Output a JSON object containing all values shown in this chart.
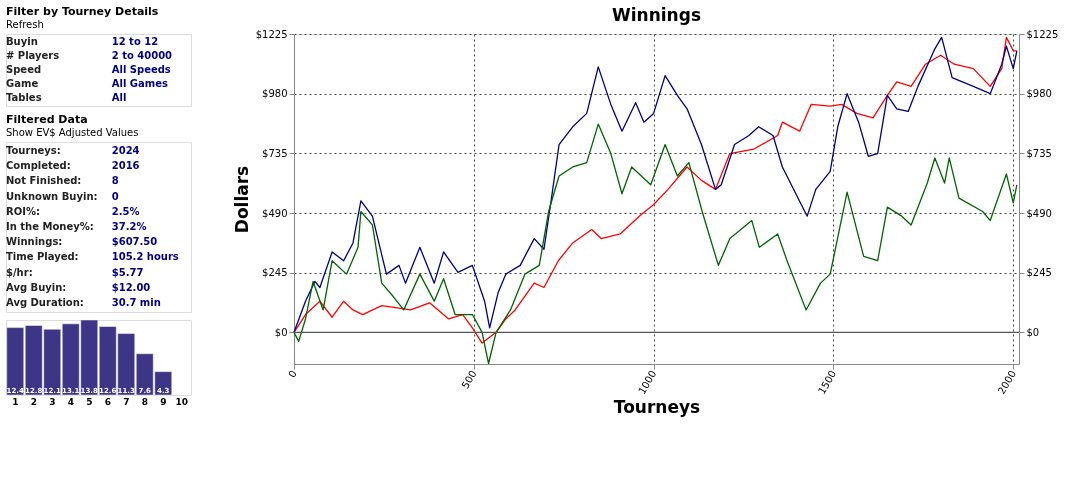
{
  "chart_data": [
    {
      "type": "other",
      "title": "Filter by Tourney Details",
      "subtitle": "Refresh",
      "annotations": [
        "Buyin",
        "12  to  12",
        "# Players",
        "2  to  40000",
        "Speed",
        "All Speeds",
        "Game",
        "All Games",
        "Tables",
        "All"
      ]
    },
    {
      "type": "other",
      "title": "Filtered Data",
      "subtitle": "Show EV$ Adjusted Values",
      "annotations": [
        "Tourneys:",
        "2024",
        "Completed:",
        "2016",
        "Not Finished:",
        "8",
        "Unknown Buyin:",
        "0",
        "ROI%:",
        "2.5%",
        "In the Money%:",
        "37.2%",
        "Winnings:",
        "$607.50",
        "Time Played:",
        "105.2 hours",
        "$/hr:",
        "$5.77",
        "Avg Buyin:",
        "$12.00",
        "Avg Duration:",
        "30.7 min"
      ]
    },
    {
      "type": "bar",
      "categories": [
        "1",
        "2",
        "3",
        "4",
        "5",
        "6",
        "7",
        "8",
        "9",
        "10"
      ],
      "values": [
        12.4,
        12.8,
        12.1,
        13.1,
        13.8,
        12.6,
        11.3,
        7.6,
        4.3,
        null
      ],
      "color": "#3d3585",
      "data_labels": true
    },
    {
      "type": "line",
      "title": "Winnings",
      "xlabel": "Tourneys",
      "ylabel": "Dollars",
      "grid": true,
      "xlim": [
        0,
        2016
      ],
      "xticks": [
        0,
        500,
        1000,
        1500,
        2000
      ],
      "ylim": [
        -130,
        1225
      ],
      "yticks": [
        {
          "value": 0,
          "label": "$0"
        },
        {
          "value": 245,
          "label": "$245"
        },
        {
          "value": 490,
          "label": "$490"
        },
        {
          "value": 735,
          "label": "$735"
        },
        {
          "value": 980,
          "label": "$980"
        },
        {
          "value": 1225,
          "label": "$1225"
        }
      ],
      "y2lim": [
        -130,
        1225
      ],
      "y2ticks": [
        {
          "value": 0,
          "label": "$0"
        },
        {
          "value": 245,
          "label": "$245"
        },
        {
          "value": 490,
          "label": "$490"
        },
        {
          "value": 735,
          "label": "$735"
        },
        {
          "value": 980,
          "label": "$980"
        },
        {
          "value": 1225,
          "label": "$1225"
        }
      ],
      "ref_lines": [
        {
          "axis": "y",
          "value": 0,
          "color": "#555555"
        }
      ],
      "series": [
        {
          "color": "#ff0000",
          "x": [
            0,
            32,
            72,
            106,
            138,
            164,
            191,
            244,
            324,
            377,
            430,
            469,
            496,
            523,
            562,
            589,
            615,
            668,
            695,
            735,
            775,
            828,
            854,
            907,
            960,
            1000,
            1040,
            1093,
            1133,
            1172,
            1212,
            1278,
            1345,
            1358,
            1406,
            1438,
            1491,
            1523,
            1565,
            1610,
            1650,
            1676,
            1716,
            1756,
            1798,
            1836,
            1889,
            1936,
            1968,
            1981,
            2000,
            2010
          ],
          "values": [
            0,
            73,
            128,
            62,
            128,
            92,
            73,
            110,
            92,
            121,
            55,
            73,
            18,
            -44,
            0,
            55,
            92,
            202,
            184,
            294,
            367,
            422,
            385,
            404,
            477,
            525,
            587,
            679,
            624,
            587,
            734,
            752,
            808,
            863,
            826,
            936,
            929,
            936,
            899,
            881,
            973,
            1028,
            1010,
            1101,
            1138,
            1101,
            1083,
            1010,
            1083,
            1211,
            1156,
            1156
          ]
        },
        {
          "color": "#000080",
          "x": [
            0,
            32,
            58,
            72,
            106,
            138,
            164,
            186,
            218,
            257,
            292,
            310,
            350,
            390,
            416,
            456,
            496,
            530,
            544,
            568,
            589,
            629,
            668,
            695,
            716,
            737,
            775,
            814,
            846,
            881,
            912,
            950,
            973,
            1000,
            1032,
            1066,
            1093,
            1133,
            1172,
            1188,
            1225,
            1265,
            1292,
            1332,
            1358,
            1427,
            1451,
            1491,
            1512,
            1538,
            1570,
            1597,
            1623,
            1650,
            1676,
            1708,
            1735,
            1782,
            1801,
            1830,
            1889,
            1936,
            1968,
            1981,
            2000,
            2010
          ],
          "values": [
            0,
            128,
            209,
            184,
            330,
            294,
            367,
            540,
            477,
            239,
            275,
            202,
            349,
            202,
            330,
            246,
            275,
            128,
            18,
            165,
            239,
            275,
            385,
            341,
            551,
            771,
            844,
            899,
            1090,
            936,
            826,
            943,
            863,
            899,
            1054,
            973,
            918,
            771,
            587,
            606,
            771,
            808,
            844,
            808,
            679,
            477,
            587,
            661,
            844,
            980,
            863,
            723,
            734,
            973,
            918,
            907,
            1010,
            1164,
            1211,
            1046,
            1010,
            980,
            1101,
            1175,
            1083,
            1156
          ]
        },
        {
          "color": "#006400",
          "x": [
            0,
            13,
            32,
            53,
            81,
            106,
            146,
            178,
            186,
            218,
            244,
            276,
            305,
            350,
            390,
            416,
            448,
            496,
            523,
            541,
            562,
            602,
            642,
            682,
            708,
            737,
            775,
            814,
            846,
            881,
            912,
            939,
            992,
            1032,
            1066,
            1098,
            1135,
            1180,
            1212,
            1273,
            1294,
            1345,
            1371,
            1424,
            1464,
            1491,
            1538,
            1584,
            1623,
            1650,
            1690,
            1716,
            1761,
            1782,
            1809,
            1822,
            1849,
            1915,
            1936,
            1981,
            2000,
            2010
          ],
          "values": [
            0,
            -37,
            55,
            209,
            92,
            294,
            239,
            349,
            496,
            441,
            202,
            147,
            92,
            239,
            128,
            220,
            73,
            73,
            0,
            -128,
            0,
            92,
            239,
            275,
            496,
            642,
            679,
            697,
            855,
            734,
            569,
            679,
            606,
            771,
            642,
            697,
            496,
            275,
            385,
            459,
            349,
            404,
            294,
            92,
            202,
            239,
            576,
            312,
            294,
            514,
            477,
            441,
            613,
            716,
            613,
            716,
            551,
            496,
            459,
            650,
            532,
            606
          ]
        }
      ]
    }
  ]
}
